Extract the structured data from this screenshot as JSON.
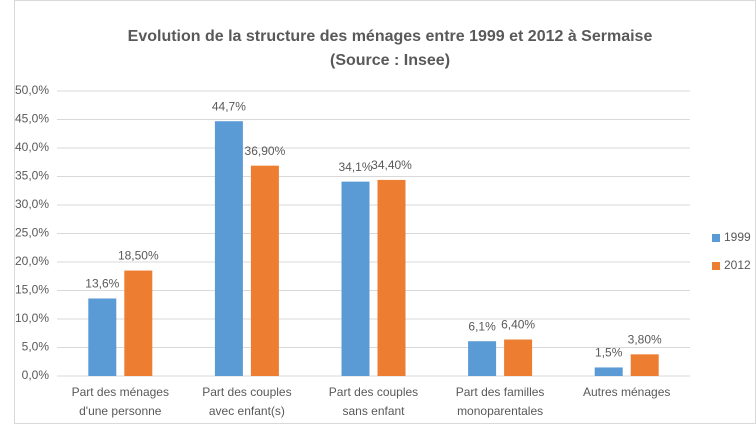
{
  "chart_data": {
    "type": "bar",
    "title": "Evolution de la structure des ménages entre 1999 et 2012 à Sermaise",
    "subtitle": "(Source : Insee)",
    "categories": [
      "Part des ménages\nd'une personne",
      "Part des couples\navec enfant(s)",
      "Part des couples\nsans enfant",
      "Part des familles\nmonoparentales",
      "Autres ménages"
    ],
    "series": [
      {
        "name": "1999",
        "color": "#5b9bd5",
        "values": [
          13.6,
          44.7,
          34.1,
          6.1,
          1.5
        ],
        "value_labels": [
          "13,6%",
          "44,7%",
          "34,1%",
          "6,1%",
          "1,5%"
        ]
      },
      {
        "name": "2012",
        "color": "#ed7d31",
        "values": [
          18.5,
          36.9,
          34.4,
          6.4,
          3.8
        ],
        "value_labels": [
          "18,50%",
          "36,90%",
          "34,40%",
          "6,40%",
          "3,80%"
        ]
      }
    ],
    "ylim": [
      0,
      50
    ],
    "yticks": [
      {
        "value": 0,
        "label": "0,0%"
      },
      {
        "value": 5,
        "label": "5,0%"
      },
      {
        "value": 10,
        "label": "10,0%"
      },
      {
        "value": 15,
        "label": "15,0%"
      },
      {
        "value": 20,
        "label": "20,0%"
      },
      {
        "value": 25,
        "label": "25,0%"
      },
      {
        "value": 30,
        "label": "30,0%"
      },
      {
        "value": 35,
        "label": "35,0%"
      },
      {
        "value": 40,
        "label": "40,0%"
      },
      {
        "value": 45,
        "label": "45,0%"
      },
      {
        "value": 50,
        "label": "50,0%"
      }
    ],
    "grid": true,
    "legend": "right"
  }
}
